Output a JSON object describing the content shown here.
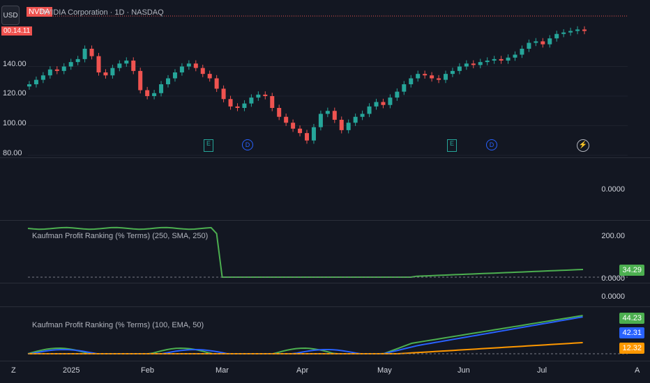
{
  "header": {
    "usd_button": "USD",
    "symbol_badge": "NVDA",
    "title": "NVIDIA Corporation · 1D · NASDAQ",
    "last_price_tag": "00.14.11"
  },
  "price_axis": {
    "labels": [
      "140.00",
      "120.00",
      "100.00",
      "80.00"
    ]
  },
  "time_axis": {
    "labels": [
      "2025",
      "Feb",
      "Mar",
      "Apr",
      "May",
      "Jun",
      "Jul"
    ],
    "left_icon": "Z",
    "right_icon": "A"
  },
  "events": [
    {
      "type": "earnings",
      "label": "E",
      "color": "#26a69a"
    },
    {
      "type": "dividend",
      "label": "D",
      "color": "#2962ff"
    },
    {
      "type": "earnings",
      "label": "E",
      "color": "#26a69a"
    },
    {
      "type": "dividend",
      "label": "D",
      "color": "#2962ff"
    }
  ],
  "panes": {
    "pane2": {
      "value": "0.0000"
    },
    "pane3": {
      "title": "Kaufman Profit Ranking (% Terms) (250, SMA, 250)",
      "axis_value": "200.00",
      "bottom_value": "0.0000",
      "badge": "34.29",
      "badge_color": "#4caf50"
    },
    "pane4": {
      "value": "0.0000"
    },
    "pane5": {
      "title": "Kaufman Profit Ranking (% Terms) (100, EMA, 50)",
      "badges": [
        {
          "value": "44.23",
          "color": "#4caf50"
        },
        {
          "value": "42.31",
          "color": "#2962ff"
        },
        {
          "value": "12.32",
          "color": "#ff9800"
        }
      ]
    }
  },
  "chart_data": {
    "type": "candlestick",
    "title": "NVIDIA Corporation · 1D · NASDAQ",
    "ylim": [
      80,
      168
    ],
    "x_labels": [
      "2025",
      "Feb",
      "Mar",
      "Apr",
      "May",
      "Jun",
      "Jul"
    ],
    "closes": [
      128,
      131,
      134,
      138,
      137,
      140,
      143,
      145,
      152,
      147,
      136,
      134,
      139,
      142,
      144,
      137,
      124,
      120,
      122,
      128,
      132,
      136,
      140,
      142,
      139,
      135,
      132,
      125,
      118,
      113,
      112,
      115,
      119,
      121,
      120,
      112,
      106,
      102,
      98,
      95,
      90,
      99,
      108,
      110,
      104,
      97,
      102,
      106,
      108,
      113,
      116,
      114,
      119,
      123,
      128,
      132,
      135,
      134,
      132,
      131,
      135,
      137,
      140,
      142,
      141,
      143,
      144,
      145,
      144,
      146,
      148,
      152,
      156,
      157,
      155,
      159,
      162,
      163,
      164,
      165,
      164
    ],
    "colors": {
      "up": "#26a69a",
      "down": "#ef5350"
    }
  }
}
